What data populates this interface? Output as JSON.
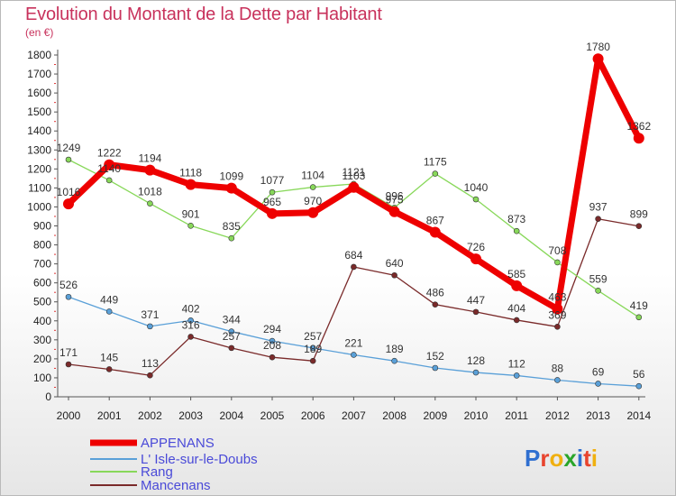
{
  "chart_data": {
    "type": "line",
    "title": "Evolution du Montant de la Dette par Habitant",
    "subtitle": "(en €)",
    "x": [
      "2000",
      "2001",
      "2002",
      "2003",
      "2004",
      "2005",
      "2006",
      "2007",
      "2008",
      "2009",
      "2010",
      "2011",
      "2012",
      "2013",
      "2014"
    ],
    "ylim": [
      0,
      1800
    ],
    "yticks": [
      0,
      100,
      200,
      300,
      400,
      500,
      600,
      700,
      800,
      900,
      1000,
      1100,
      1200,
      1300,
      1400,
      1500,
      1600,
      1700,
      1800
    ],
    "grid": false,
    "legend_position": "bottom-left",
    "series": [
      {
        "name": "Mancenans",
        "color": "#7a2a2a",
        "values": [
          171,
          145,
          113,
          316,
          257,
          208,
          189,
          684,
          640,
          486,
          447,
          404,
          369,
          937,
          899
        ]
      },
      {
        "name": "Rang",
        "color": "#88d85a",
        "values": [
          1249,
          1140,
          1018,
          901,
          835,
          1077,
          1104,
          1121,
          996,
          1175,
          1040,
          873,
          708,
          559,
          419
        ]
      },
      {
        "name": "L' Isle-sur-le-Doubs",
        "color": "#5aa0d8",
        "values": [
          526,
          449,
          371,
          402,
          344,
          294,
          257,
          221,
          189,
          152,
          128,
          112,
          88,
          69,
          56
        ]
      },
      {
        "name": "APPENANS",
        "color": "#ee0000",
        "values": [
          1016,
          1222,
          1194,
          1118,
          1099,
          965,
          970,
          1103,
          975,
          867,
          726,
          585,
          463,
          1780,
          1362
        ]
      }
    ]
  },
  "legend": {
    "items": [
      {
        "name": "APPENANS",
        "color": "#ee0000"
      },
      {
        "name": "L' Isle-sur-le-Doubs",
        "color": "#5aa0d8"
      },
      {
        "name": "Rang",
        "color": "#88d85a"
      },
      {
        "name": "Mancenans",
        "color": "#7a2a2a"
      }
    ]
  },
  "logo": {
    "letters": [
      "P",
      "r",
      "o",
      "x",
      "i",
      "t",
      "i"
    ],
    "colors": [
      "#2f6fd0",
      "#e8442e",
      "#f0b010",
      "#2aa52a",
      "#2f6fd0",
      "#e8442e",
      "#f0b010"
    ]
  }
}
